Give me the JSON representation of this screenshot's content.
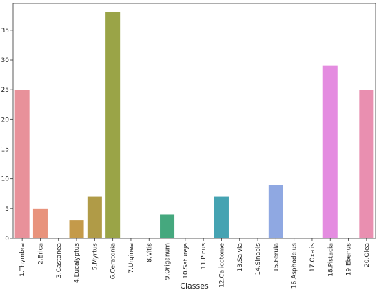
{
  "chart_data": {
    "type": "bar",
    "xlabel": "Classes",
    "ylabel": "",
    "ylim": [
      0,
      39.5
    ],
    "yticks": [
      0,
      5,
      10,
      15,
      20,
      25,
      30,
      35
    ],
    "grid": false,
    "categories": [
      "1.Thymbra",
      "2.Erica",
      "3.Castanea",
      "4.Eucalyptus",
      "5.Myrtus",
      "6.Ceratonia",
      "7.Urginea",
      "8.Vitis",
      "9.Origanum",
      "10.Satureja",
      "11.Pinus",
      "12.Calicotome",
      "13.Salvia",
      "14.Sinapis",
      "15.Ferula",
      "16.Asphodelus",
      "17.Oxalis",
      "18.Pistacia",
      "19.Ebenus",
      "20.Olea"
    ],
    "values": [
      25,
      5,
      0,
      3,
      7,
      38,
      0,
      0,
      4,
      0,
      0,
      7,
      0,
      0,
      9,
      0,
      0,
      29,
      0,
      25
    ],
    "colors": [
      "#e8919a",
      "#e8937c",
      "#d89e6a",
      "#c49a4a",
      "#b09b47",
      "#9aa447",
      "#7aaa50",
      "#4fad6a",
      "#45a87e",
      "#43a98e",
      "#43a7a0",
      "#45a3b2",
      "#48a0c2",
      "#6fa3d8",
      "#8fa8e2",
      "#a59be6",
      "#c191e8",
      "#e48ce0",
      "#ea8cc8",
      "#e98fb0"
    ]
  }
}
